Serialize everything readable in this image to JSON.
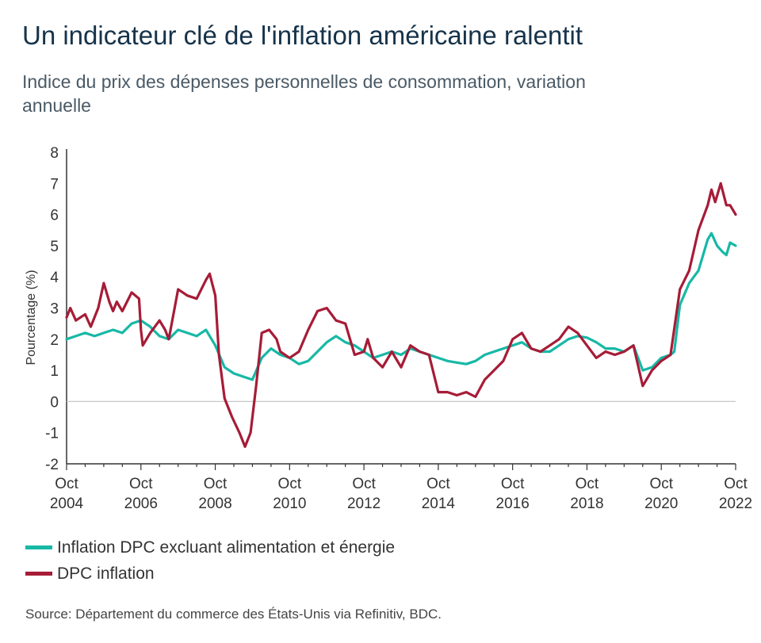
{
  "title": "Un indicateur clé de l'inflation américaine ralentit",
  "subtitle": "Indice du prix des dépenses personnelles de consommation, variation annuelle",
  "source": "Source: Département du commerce des États-Unis via Refinitiv, BDC.",
  "colors": {
    "core": "#17b8a6",
    "headline": "#a61c37",
    "axis": "#333333",
    "text": "#16334a"
  },
  "chart_data": {
    "type": "line",
    "ylabel": "Pourcentage (%)",
    "xlabel": "",
    "ylim": [
      -2,
      8
    ],
    "yticks": [
      -2,
      -1,
      0,
      1,
      2,
      3,
      4,
      5,
      6,
      7,
      8
    ],
    "xlim": [
      2004.75,
      2022.75
    ],
    "xticks": [
      {
        "pos": 2004.75,
        "month": "Oct",
        "year": "2004"
      },
      {
        "pos": 2006.75,
        "month": "Oct",
        "year": "2006"
      },
      {
        "pos": 2008.75,
        "month": "Oct",
        "year": "2008"
      },
      {
        "pos": 2010.75,
        "month": "Oct",
        "year": "2010"
      },
      {
        "pos": 2012.75,
        "month": "Oct",
        "year": "2012"
      },
      {
        "pos": 2014.75,
        "month": "Oct",
        "year": "2014"
      },
      {
        "pos": 2016.75,
        "month": "Oct",
        "year": "2016"
      },
      {
        "pos": 2018.75,
        "month": "Oct",
        "year": "2018"
      },
      {
        "pos": 2020.75,
        "month": "Oct",
        "year": "2020"
      },
      {
        "pos": 2022.75,
        "month": "Oct",
        "year": "2022"
      }
    ],
    "grid": false,
    "legend_position": "bottom-left",
    "series": [
      {
        "name": "Inflation DPC excluant alimentation et énergie",
        "color": "#17b8a6",
        "points": [
          [
            2004.75,
            2.0
          ],
          [
            2005.0,
            2.1
          ],
          [
            2005.25,
            2.2
          ],
          [
            2005.5,
            2.1
          ],
          [
            2005.75,
            2.2
          ],
          [
            2006.0,
            2.3
          ],
          [
            2006.25,
            2.2
          ],
          [
            2006.5,
            2.5
          ],
          [
            2006.75,
            2.6
          ],
          [
            2007.0,
            2.4
          ],
          [
            2007.25,
            2.1
          ],
          [
            2007.5,
            2.0
          ],
          [
            2007.75,
            2.3
          ],
          [
            2008.0,
            2.2
          ],
          [
            2008.25,
            2.1
          ],
          [
            2008.5,
            2.3
          ],
          [
            2008.75,
            1.8
          ],
          [
            2009.0,
            1.1
          ],
          [
            2009.25,
            0.9
          ],
          [
            2009.5,
            0.8
          ],
          [
            2009.75,
            0.7
          ],
          [
            2010.0,
            1.4
          ],
          [
            2010.25,
            1.7
          ],
          [
            2010.5,
            1.5
          ],
          [
            2010.75,
            1.4
          ],
          [
            2011.0,
            1.2
          ],
          [
            2011.25,
            1.3
          ],
          [
            2011.5,
            1.6
          ],
          [
            2011.75,
            1.9
          ],
          [
            2012.0,
            2.1
          ],
          [
            2012.25,
            1.9
          ],
          [
            2012.5,
            1.8
          ],
          [
            2012.75,
            1.6
          ],
          [
            2013.0,
            1.4
          ],
          [
            2013.25,
            1.5
          ],
          [
            2013.5,
            1.6
          ],
          [
            2013.75,
            1.5
          ],
          [
            2014.0,
            1.7
          ],
          [
            2014.25,
            1.6
          ],
          [
            2014.5,
            1.5
          ],
          [
            2014.75,
            1.4
          ],
          [
            2015.0,
            1.3
          ],
          [
            2015.25,
            1.25
          ],
          [
            2015.5,
            1.2
          ],
          [
            2015.75,
            1.3
          ],
          [
            2016.0,
            1.5
          ],
          [
            2016.25,
            1.6
          ],
          [
            2016.5,
            1.7
          ],
          [
            2016.75,
            1.8
          ],
          [
            2017.0,
            1.9
          ],
          [
            2017.25,
            1.7
          ],
          [
            2017.5,
            1.6
          ],
          [
            2017.75,
            1.6
          ],
          [
            2018.0,
            1.8
          ],
          [
            2018.25,
            2.0
          ],
          [
            2018.5,
            2.1
          ],
          [
            2018.75,
            2.05
          ],
          [
            2019.0,
            1.9
          ],
          [
            2019.25,
            1.7
          ],
          [
            2019.5,
            1.7
          ],
          [
            2019.75,
            1.6
          ],
          [
            2020.0,
            1.8
          ],
          [
            2020.25,
            1.0
          ],
          [
            2020.5,
            1.1
          ],
          [
            2020.75,
            1.4
          ],
          [
            2021.0,
            1.5
          ],
          [
            2021.1,
            1.6
          ],
          [
            2021.25,
            3.1
          ],
          [
            2021.5,
            3.8
          ],
          [
            2021.75,
            4.2
          ],
          [
            2022.0,
            5.2
          ],
          [
            2022.1,
            5.4
          ],
          [
            2022.25,
            5.0
          ],
          [
            2022.4,
            4.8
          ],
          [
            2022.5,
            4.7
          ],
          [
            2022.6,
            5.1
          ],
          [
            2022.75,
            5.0
          ]
        ]
      },
      {
        "name": "DPC inflation",
        "color": "#a61c37",
        "points": [
          [
            2004.75,
            2.7
          ],
          [
            2004.85,
            3.0
          ],
          [
            2005.0,
            2.6
          ],
          [
            2005.25,
            2.8
          ],
          [
            2005.4,
            2.4
          ],
          [
            2005.6,
            3.0
          ],
          [
            2005.75,
            3.8
          ],
          [
            2005.9,
            3.2
          ],
          [
            2006.0,
            2.9
          ],
          [
            2006.1,
            3.2
          ],
          [
            2006.25,
            2.9
          ],
          [
            2006.5,
            3.5
          ],
          [
            2006.7,
            3.3
          ],
          [
            2006.75,
            2.3
          ],
          [
            2006.8,
            1.8
          ],
          [
            2007.0,
            2.2
          ],
          [
            2007.25,
            2.6
          ],
          [
            2007.4,
            2.3
          ],
          [
            2007.5,
            2.0
          ],
          [
            2007.75,
            3.6
          ],
          [
            2008.0,
            3.4
          ],
          [
            2008.25,
            3.3
          ],
          [
            2008.5,
            3.9
          ],
          [
            2008.6,
            4.1
          ],
          [
            2008.75,
            3.4
          ],
          [
            2008.85,
            1.5
          ],
          [
            2009.0,
            0.1
          ],
          [
            2009.2,
            -0.5
          ],
          [
            2009.4,
            -1.0
          ],
          [
            2009.55,
            -1.45
          ],
          [
            2009.7,
            -1.0
          ],
          [
            2009.85,
            0.5
          ],
          [
            2010.0,
            2.2
          ],
          [
            2010.2,
            2.3
          ],
          [
            2010.4,
            2.0
          ],
          [
            2010.5,
            1.6
          ],
          [
            2010.75,
            1.4
          ],
          [
            2011.0,
            1.6
          ],
          [
            2011.25,
            2.3
          ],
          [
            2011.5,
            2.9
          ],
          [
            2011.75,
            3.0
          ],
          [
            2012.0,
            2.6
          ],
          [
            2012.25,
            2.5
          ],
          [
            2012.5,
            1.5
          ],
          [
            2012.75,
            1.6
          ],
          [
            2012.85,
            2.0
          ],
          [
            2013.0,
            1.4
          ],
          [
            2013.25,
            1.1
          ],
          [
            2013.5,
            1.6
          ],
          [
            2013.75,
            1.1
          ],
          [
            2014.0,
            1.8
          ],
          [
            2014.25,
            1.6
          ],
          [
            2014.5,
            1.5
          ],
          [
            2014.75,
            0.3
          ],
          [
            2015.0,
            0.3
          ],
          [
            2015.25,
            0.2
          ],
          [
            2015.5,
            0.3
          ],
          [
            2015.75,
            0.15
          ],
          [
            2016.0,
            0.7
          ],
          [
            2016.25,
            1.0
          ],
          [
            2016.5,
            1.3
          ],
          [
            2016.75,
            2.0
          ],
          [
            2017.0,
            2.2
          ],
          [
            2017.25,
            1.7
          ],
          [
            2017.5,
            1.6
          ],
          [
            2017.75,
            1.8
          ],
          [
            2018.0,
            2.0
          ],
          [
            2018.25,
            2.4
          ],
          [
            2018.5,
            2.2
          ],
          [
            2018.75,
            1.8
          ],
          [
            2019.0,
            1.4
          ],
          [
            2019.25,
            1.6
          ],
          [
            2019.5,
            1.5
          ],
          [
            2019.75,
            1.6
          ],
          [
            2020.0,
            1.8
          ],
          [
            2020.25,
            0.5
          ],
          [
            2020.5,
            1.0
          ],
          [
            2020.75,
            1.3
          ],
          [
            2021.0,
            1.5
          ],
          [
            2021.25,
            3.6
          ],
          [
            2021.5,
            4.2
          ],
          [
            2021.75,
            5.5
          ],
          [
            2022.0,
            6.3
          ],
          [
            2022.1,
            6.8
          ],
          [
            2022.2,
            6.4
          ],
          [
            2022.35,
            7.0
          ],
          [
            2022.5,
            6.3
          ],
          [
            2022.6,
            6.3
          ],
          [
            2022.75,
            6.0
          ]
        ]
      }
    ]
  }
}
